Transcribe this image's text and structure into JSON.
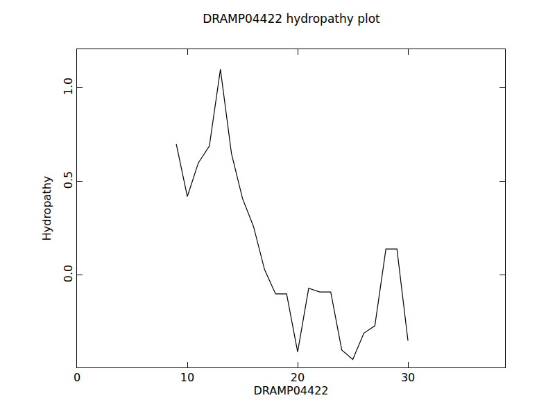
{
  "chart_data": {
    "type": "line",
    "title": "DRAMP04422 hydropathy plot",
    "x_label": "DRAMP04422",
    "y_label": "Hydropathy",
    "x": [
      9,
      10,
      11,
      12,
      13,
      14,
      15,
      16,
      17,
      18,
      19,
      20,
      21,
      22,
      23,
      24,
      25,
      26,
      27,
      28,
      29,
      30
    ],
    "values": [
      0.7,
      0.42,
      0.6,
      0.69,
      1.1,
      0.65,
      0.41,
      0.26,
      0.03,
      -0.1,
      -0.1,
      -0.41,
      -0.07,
      -0.09,
      -0.09,
      -0.4,
      -0.45,
      -0.31,
      -0.27,
      0.14,
      0.14,
      -0.35
    ],
    "color": "#000000",
    "xlim": [
      0,
      38.8
    ],
    "ylim": [
      -0.493,
      1.207
    ],
    "xticks": [
      0,
      10,
      20,
      30
    ],
    "yticks": [
      {
        "value": 0,
        "label": "0.0"
      },
      {
        "value": 0.5,
        "label": "0.5"
      },
      {
        "value": 1,
        "label": "1.0"
      }
    ],
    "grid": false
  }
}
